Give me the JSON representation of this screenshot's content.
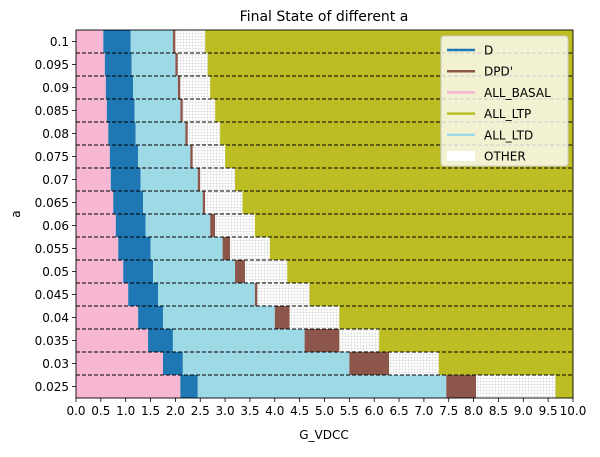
{
  "chart_data": {
    "type": "stacked-horizontal-bar",
    "title": "Final State of different a",
    "xlabel": "G_VDCC",
    "ylabel": "a",
    "xlim": [
      0,
      10
    ],
    "x_ticks": [
      "0.0",
      "0.5",
      "1.0",
      "1.5",
      "2.0",
      "2.5",
      "3.0",
      "3.5",
      "4.0",
      "4.5",
      "5.0",
      "5.5",
      "6.0",
      "6.5",
      "7.0",
      "7.5",
      "8.0",
      "8.5",
      "9.0",
      "9.5",
      "10.0"
    ],
    "categories": [
      "0.1",
      "0.095",
      "0.09",
      "0.085",
      "0.08",
      "0.075",
      "0.07",
      "0.065",
      "0.06",
      "0.055",
      "0.05",
      "0.045",
      "0.04",
      "0.035",
      "0.03",
      "0.025"
    ],
    "grid": "dashed horizontal separators",
    "legend_position": "top-right",
    "legend": [
      {
        "label": "D",
        "color": "#1f77b4",
        "style": "line"
      },
      {
        "label": "DPD'",
        "color": "#8c564b",
        "style": "line"
      },
      {
        "label": "ALL_BASAL",
        "color": "#f7b6d2",
        "style": "line"
      },
      {
        "label": "ALL_LTP",
        "color": "#bcbd22",
        "style": "line"
      },
      {
        "label": "ALL_LTD",
        "color": "#9edae5",
        "style": "line"
      },
      {
        "label": "OTHER",
        "color": "#ffffff",
        "style": "patch"
      }
    ],
    "colors": {
      "ALL_BASAL": "#f7b6d2",
      "D": "#1f77b4",
      "ALL_LTD": "#9edae5",
      "DPD'": "#8c564b",
      "OTHER": "#ffffff",
      "ALL_LTP": "#bcbd22"
    },
    "rows": [
      {
        "a": "0.1",
        "segments": [
          [
            "ALL_BASAL",
            0,
            0.55
          ],
          [
            "D",
            0.55,
            1.1
          ],
          [
            "ALL_LTD",
            1.1,
            1.95
          ],
          [
            "DPD'",
            1.95,
            2.0
          ],
          [
            "OTHER",
            2.0,
            2.6
          ],
          [
            "ALL_LTP",
            2.6,
            10
          ]
        ]
      },
      {
        "a": "0.095",
        "segments": [
          [
            "ALL_BASAL",
            0,
            0.58
          ],
          [
            "D",
            0.58,
            1.12
          ],
          [
            "ALL_LTD",
            1.12,
            2.0
          ],
          [
            "DPD'",
            2.0,
            2.05
          ],
          [
            "OTHER",
            2.05,
            2.65
          ],
          [
            "ALL_LTP",
            2.65,
            10
          ]
        ]
      },
      {
        "a": "0.09",
        "segments": [
          [
            "ALL_BASAL",
            0,
            0.6
          ],
          [
            "D",
            0.6,
            1.15
          ],
          [
            "ALL_LTD",
            1.15,
            2.05
          ],
          [
            "DPD'",
            2.05,
            2.1
          ],
          [
            "OTHER",
            2.1,
            2.7
          ],
          [
            "ALL_LTP",
            2.7,
            10
          ]
        ]
      },
      {
        "a": "0.085",
        "segments": [
          [
            "ALL_BASAL",
            0,
            0.62
          ],
          [
            "D",
            0.62,
            1.18
          ],
          [
            "ALL_LTD",
            1.18,
            2.1
          ],
          [
            "DPD'",
            2.1,
            2.15
          ],
          [
            "OTHER",
            2.15,
            2.8
          ],
          [
            "ALL_LTP",
            2.8,
            10
          ]
        ]
      },
      {
        "a": "0.08",
        "segments": [
          [
            "ALL_BASAL",
            0,
            0.65
          ],
          [
            "D",
            0.65,
            1.2
          ],
          [
            "ALL_LTD",
            1.2,
            2.2
          ],
          [
            "DPD'",
            2.2,
            2.25
          ],
          [
            "OTHER",
            2.25,
            2.9
          ],
          [
            "ALL_LTP",
            2.9,
            10
          ]
        ]
      },
      {
        "a": "0.075",
        "segments": [
          [
            "ALL_BASAL",
            0,
            0.68
          ],
          [
            "D",
            0.68,
            1.25
          ],
          [
            "ALL_LTD",
            1.25,
            2.3
          ],
          [
            "DPD'",
            2.3,
            2.35
          ],
          [
            "OTHER",
            2.35,
            3.0
          ],
          [
            "ALL_LTP",
            3.0,
            10
          ]
        ]
      },
      {
        "a": "0.07",
        "segments": [
          [
            "ALL_BASAL",
            0,
            0.7
          ],
          [
            "D",
            0.7,
            1.3
          ],
          [
            "ALL_LTD",
            1.3,
            2.45
          ],
          [
            "DPD'",
            2.45,
            2.5
          ],
          [
            "OTHER",
            2.5,
            3.2
          ],
          [
            "ALL_LTP",
            3.2,
            10
          ]
        ]
      },
      {
        "a": "0.065",
        "segments": [
          [
            "ALL_BASAL",
            0,
            0.75
          ],
          [
            "D",
            0.75,
            1.35
          ],
          [
            "ALL_LTD",
            1.35,
            2.55
          ],
          [
            "DPD'",
            2.55,
            2.6
          ],
          [
            "OTHER",
            2.6,
            3.35
          ],
          [
            "ALL_LTP",
            3.35,
            10
          ]
        ]
      },
      {
        "a": "0.06",
        "segments": [
          [
            "ALL_BASAL",
            0,
            0.8
          ],
          [
            "D",
            0.8,
            1.4
          ],
          [
            "ALL_LTD",
            1.4,
            2.7
          ],
          [
            "DPD'",
            2.7,
            2.8
          ],
          [
            "OTHER",
            2.8,
            3.6
          ],
          [
            "ALL_LTP",
            3.6,
            10
          ]
        ]
      },
      {
        "a": "0.055",
        "segments": [
          [
            "ALL_BASAL",
            0,
            0.85
          ],
          [
            "D",
            0.85,
            1.5
          ],
          [
            "ALL_LTD",
            1.5,
            2.95
          ],
          [
            "DPD'",
            2.95,
            3.1
          ],
          [
            "OTHER",
            3.1,
            3.9
          ],
          [
            "ALL_LTP",
            3.9,
            10
          ]
        ]
      },
      {
        "a": "0.05",
        "segments": [
          [
            "ALL_BASAL",
            0,
            0.95
          ],
          [
            "D",
            0.95,
            1.55
          ],
          [
            "ALL_LTD",
            1.55,
            3.2
          ],
          [
            "DPD'",
            3.2,
            3.4
          ],
          [
            "OTHER",
            3.4,
            4.25
          ],
          [
            "ALL_LTP",
            4.25,
            10
          ]
        ]
      },
      {
        "a": "0.045",
        "segments": [
          [
            "ALL_BASAL",
            0,
            1.05
          ],
          [
            "D",
            1.05,
            1.65
          ],
          [
            "ALL_LTD",
            1.65,
            3.6
          ],
          [
            "DPD'",
            3.6,
            3.65
          ],
          [
            "OTHER",
            3.65,
            4.7
          ],
          [
            "ALL_LTP",
            4.7,
            10
          ]
        ]
      },
      {
        "a": "0.04",
        "segments": [
          [
            "ALL_BASAL",
            0,
            1.25
          ],
          [
            "D",
            1.25,
            1.75
          ],
          [
            "ALL_LTD",
            1.75,
            4.0
          ],
          [
            "DPD'",
            4.0,
            4.3
          ],
          [
            "OTHER",
            4.3,
            5.3
          ],
          [
            "ALL_LTP",
            5.3,
            10
          ]
        ]
      },
      {
        "a": "0.035",
        "segments": [
          [
            "ALL_BASAL",
            0,
            1.45
          ],
          [
            "D",
            1.45,
            1.95
          ],
          [
            "ALL_LTD",
            1.95,
            4.6
          ],
          [
            "DPD'",
            4.6,
            5.3
          ],
          [
            "OTHER",
            5.3,
            6.1
          ],
          [
            "ALL_LTP",
            6.1,
            10
          ]
        ]
      },
      {
        "a": "0.03",
        "segments": [
          [
            "ALL_BASAL",
            0,
            1.75
          ],
          [
            "D",
            1.75,
            2.15
          ],
          [
            "ALL_LTD",
            2.15,
            5.5
          ],
          [
            "DPD'",
            5.5,
            6.3
          ],
          [
            "OTHER",
            6.3,
            7.3
          ],
          [
            "ALL_LTP",
            7.3,
            10
          ]
        ]
      },
      {
        "a": "0.025",
        "segments": [
          [
            "ALL_BASAL",
            0,
            2.1
          ],
          [
            "D",
            2.1,
            2.45
          ],
          [
            "ALL_LTD",
            2.45,
            7.45
          ],
          [
            "DPD'",
            7.45,
            8.05
          ],
          [
            "OTHER",
            8.05,
            9.65
          ],
          [
            "ALL_LTP",
            9.65,
            10
          ]
        ]
      }
    ]
  }
}
